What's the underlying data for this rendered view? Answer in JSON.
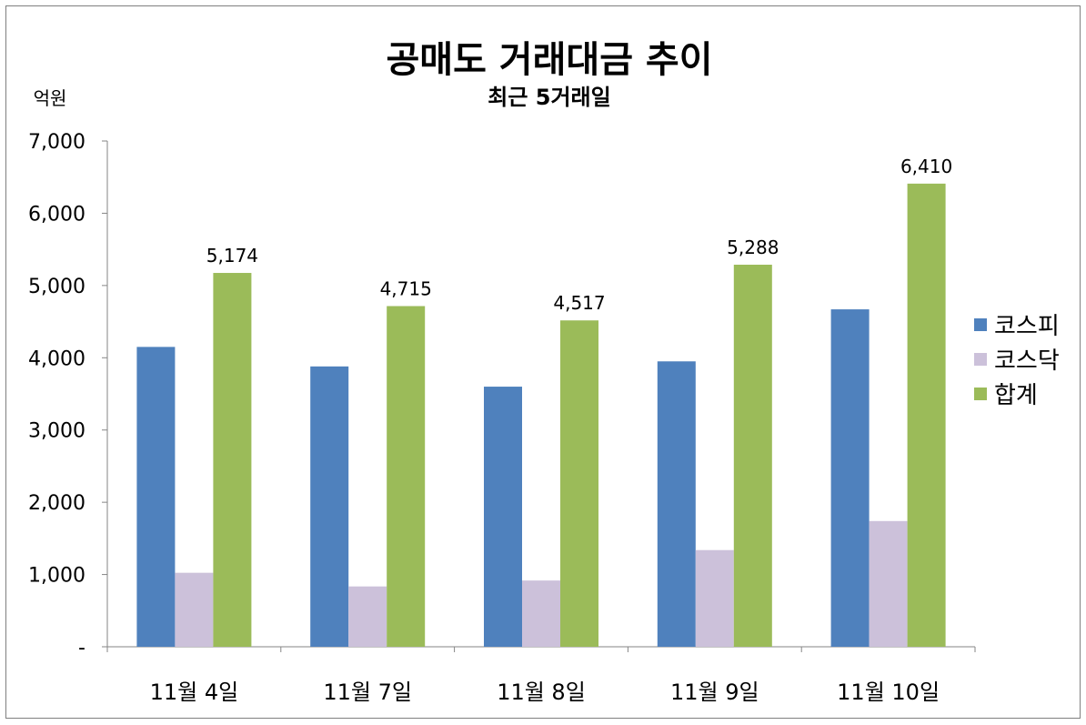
{
  "chart_data": {
    "type": "bar",
    "title": "공매도 거래대금 추이",
    "subtitle": "최근 5거래일",
    "ylabel": "억원",
    "xlabel": "",
    "categories": [
      "11월 4일",
      "11월 7일",
      "11월 8일",
      "11월 9일",
      "11월 10일"
    ],
    "series": [
      {
        "name": "코스피",
        "values": [
          4150,
          3880,
          3600,
          3950,
          4670
        ],
        "color": "#4f81bd"
      },
      {
        "name": "코스닥",
        "values": [
          1024,
          835,
          917,
          1338,
          1740
        ],
        "color": "#ccc1da"
      },
      {
        "name": "합계",
        "values": [
          5174,
          4715,
          4517,
          5288,
          6410
        ],
        "color": "#9bbb59"
      }
    ],
    "data_labels": {
      "series": "합계",
      "values": [
        "5,174",
        "4,715",
        "4,517",
        "5,288",
        "6,410"
      ]
    },
    "ylim": [
      0,
      7000
    ],
    "yticks": [
      0,
      1000,
      2000,
      3000,
      4000,
      5000,
      6000,
      7000
    ],
    "ytick_labels": [
      "-",
      "1,000",
      "2,000",
      "3,000",
      "4,000",
      "5,000",
      "6,000",
      "7,000"
    ],
    "grid": false,
    "legend_position": "right"
  }
}
